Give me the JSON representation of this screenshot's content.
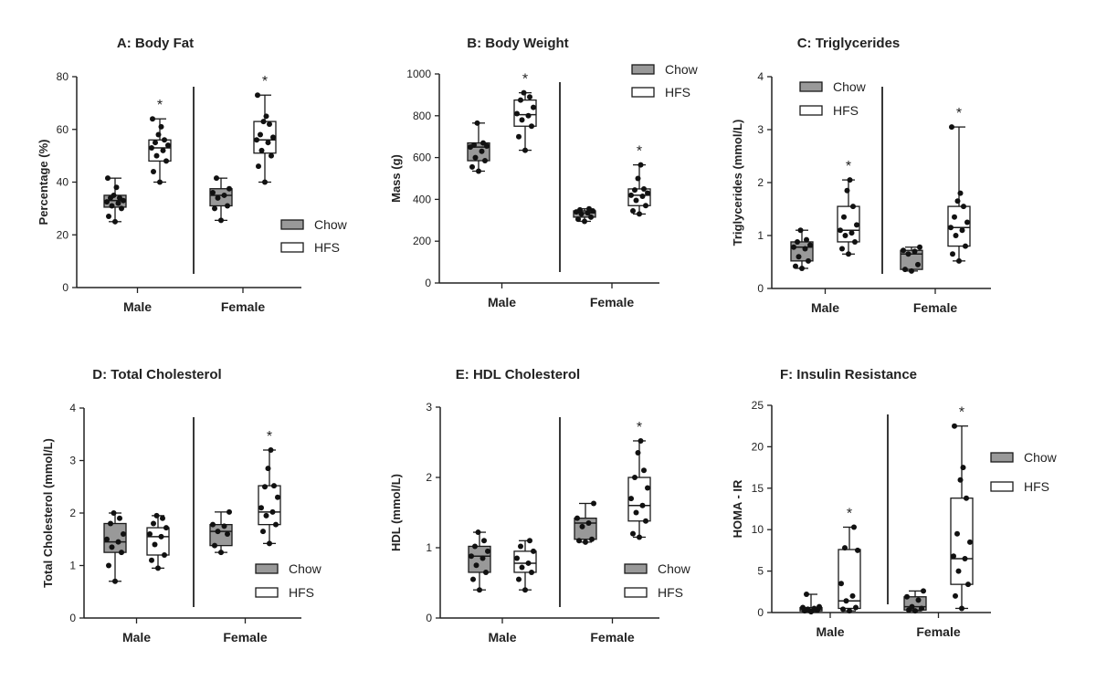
{
  "legend": {
    "chow_label": "Chow",
    "hfs_label": "HFS"
  },
  "significance_marker": "*",
  "colors": {
    "chow_fill": "#999999",
    "hfs_fill": "#ffffff",
    "stroke": "#1a1a1a"
  },
  "chart_data": [
    {
      "type": "box",
      "title": "A: Body Fat",
      "ylabel": "Percentage (%)",
      "ylim": [
        0,
        80
      ],
      "yticks": [
        0,
        20,
        40,
        60,
        80
      ],
      "categories": [
        "Male",
        "Female"
      ],
      "legend_position": "lower-right",
      "series": [
        {
          "name": "Chow",
          "boxes": [
            {
              "category": "Male",
              "min": 25,
              "q1": 30.5,
              "median": 33,
              "q3": 35,
              "max": 41.5,
              "points": [
                25,
                27,
                30,
                31,
                32,
                32.5,
                33,
                34,
                34,
                35,
                38,
                41.5
              ],
              "significant": false
            },
            {
              "category": "Female",
              "min": 25.5,
              "q1": 31,
              "median": 35,
              "q3": 37.5,
              "max": 41.5,
              "points": [
                25.5,
                30,
                31,
                34,
                35,
                36,
                37.5,
                41.5
              ],
              "significant": false
            }
          ]
        },
        {
          "name": "HFS",
          "boxes": [
            {
              "category": "Male",
              "min": 40,
              "q1": 48,
              "median": 53,
              "q3": 56,
              "max": 64,
              "points": [
                40,
                44,
                48,
                50,
                52,
                53,
                54,
                55,
                56,
                58,
                61,
                64
              ],
              "significant": true
            },
            {
              "category": "Female",
              "min": 40,
              "q1": 51,
              "median": 56,
              "q3": 63,
              "max": 73,
              "points": [
                40,
                46,
                50,
                52,
                55,
                56,
                57,
                58,
                62,
                63,
                65,
                73
              ],
              "significant": true
            }
          ]
        }
      ]
    },
    {
      "type": "box",
      "title": "B: Body Weight",
      "ylabel": "Mass (g)",
      "ylim": [
        0,
        1000
      ],
      "yticks": [
        0,
        200,
        400,
        600,
        800,
        1000
      ],
      "categories": [
        "Male",
        "Female"
      ],
      "legend_position": "top-right",
      "series": [
        {
          "name": "Chow",
          "boxes": [
            {
              "category": "Male",
              "min": 535,
              "q1": 585,
              "median": 650,
              "q3": 670,
              "max": 765,
              "points": [
                535,
                555,
                585,
                600,
                630,
                650,
                655,
                660,
                670,
                765
              ],
              "significant": false
            },
            {
              "category": "Female",
              "min": 295,
              "q1": 315,
              "median": 335,
              "q3": 345,
              "max": 355,
              "points": [
                295,
                305,
                315,
                330,
                335,
                340,
                345,
                350,
                355
              ],
              "significant": false
            }
          ]
        },
        {
          "name": "HFS",
          "boxes": [
            {
              "category": "Male",
              "min": 635,
              "q1": 750,
              "median": 805,
              "q3": 875,
              "max": 910,
              "points": [
                635,
                700,
                750,
                780,
                800,
                810,
                840,
                875,
                890,
                910
              ],
              "significant": true
            },
            {
              "category": "Female",
              "min": 330,
              "q1": 370,
              "median": 420,
              "q3": 450,
              "max": 565,
              "points": [
                330,
                345,
                370,
                395,
                415,
                420,
                430,
                445,
                450,
                500,
                565
              ],
              "significant": true
            }
          ]
        }
      ]
    },
    {
      "type": "box",
      "title": "C: Triglycerides",
      "ylabel": "Triglycerides (mmol/L)",
      "ylim": [
        0,
        4
      ],
      "yticks": [
        0,
        1,
        2,
        3,
        4
      ],
      "categories": [
        "Male",
        "Female"
      ],
      "legend_position": "top-left",
      "series": [
        {
          "name": "Chow",
          "boxes": [
            {
              "category": "Male",
              "min": 0.38,
              "q1": 0.52,
              "median": 0.78,
              "q3": 0.88,
              "max": 1.1,
              "points": [
                0.38,
                0.42,
                0.52,
                0.6,
                0.75,
                0.78,
                0.82,
                0.88,
                0.92,
                1.1
              ],
              "significant": false
            },
            {
              "category": "Female",
              "min": 0.33,
              "q1": 0.36,
              "median": 0.65,
              "q3": 0.72,
              "max": 0.78,
              "points": [
                0.33,
                0.36,
                0.45,
                0.65,
                0.7,
                0.72,
                0.78
              ],
              "significant": false
            }
          ]
        },
        {
          "name": "HFS",
          "boxes": [
            {
              "category": "Male",
              "min": 0.65,
              "q1": 0.88,
              "median": 1.1,
              "q3": 1.55,
              "max": 2.05,
              "points": [
                0.65,
                0.75,
                0.88,
                1.0,
                1.05,
                1.1,
                1.2,
                1.35,
                1.55,
                1.85,
                2.05
              ],
              "significant": true
            },
            {
              "category": "Female",
              "min": 0.52,
              "q1": 0.8,
              "median": 1.15,
              "q3": 1.55,
              "max": 3.05,
              "points": [
                0.52,
                0.65,
                0.8,
                1.0,
                1.1,
                1.15,
                1.25,
                1.35,
                1.55,
                1.65,
                1.8,
                3.05
              ],
              "significant": true
            }
          ]
        }
      ]
    },
    {
      "type": "box",
      "title": "D: Total Cholesterol",
      "ylabel": "Total Cholesterol (mmol/L)",
      "ylim": [
        0,
        4
      ],
      "yticks": [
        0,
        1,
        2,
        3,
        4
      ],
      "categories": [
        "Male",
        "Female"
      ],
      "legend_position": "lower-right",
      "series": [
        {
          "name": "Chow",
          "boxes": [
            {
              "category": "Male",
              "min": 0.7,
              "q1": 1.25,
              "median": 1.45,
              "q3": 1.8,
              "max": 2.0,
              "points": [
                0.7,
                1.0,
                1.25,
                1.35,
                1.45,
                1.5,
                1.6,
                1.8,
                1.9,
                2.0
              ],
              "significant": false
            },
            {
              "category": "Female",
              "min": 1.25,
              "q1": 1.38,
              "median": 1.65,
              "q3": 1.78,
              "max": 2.02,
              "points": [
                1.25,
                1.38,
                1.6,
                1.65,
                1.75,
                1.78,
                2.02
              ],
              "significant": false
            }
          ]
        },
        {
          "name": "HFS",
          "boxes": [
            {
              "category": "Male",
              "min": 0.95,
              "q1": 1.2,
              "median": 1.55,
              "q3": 1.72,
              "max": 1.95,
              "points": [
                0.95,
                1.1,
                1.2,
                1.4,
                1.55,
                1.6,
                1.72,
                1.8,
                1.9,
                1.95
              ],
              "significant": false
            },
            {
              "category": "Female",
              "min": 1.42,
              "q1": 1.78,
              "median": 2.02,
              "q3": 2.52,
              "max": 3.2,
              "points": [
                1.42,
                1.65,
                1.78,
                1.95,
                2.02,
                2.1,
                2.3,
                2.5,
                2.52,
                2.85,
                3.2
              ],
              "significant": true
            }
          ]
        }
      ]
    },
    {
      "type": "box",
      "title": "E: HDL Cholesterol",
      "ylabel": "HDL (mmol/L)",
      "ylim": [
        0,
        3
      ],
      "yticks": [
        0,
        1,
        2,
        3
      ],
      "categories": [
        "Male",
        "Female"
      ],
      "legend_position": "lower-right",
      "series": [
        {
          "name": "Chow",
          "boxes": [
            {
              "category": "Male",
              "min": 0.4,
              "q1": 0.65,
              "median": 0.88,
              "q3": 1.02,
              "max": 1.22,
              "points": [
                0.4,
                0.55,
                0.65,
                0.75,
                0.85,
                0.88,
                0.95,
                1.02,
                1.1,
                1.22
              ],
              "significant": false
            },
            {
              "category": "Female",
              "min": 1.08,
              "q1": 1.12,
              "median": 1.35,
              "q3": 1.42,
              "max": 1.63,
              "points": [
                1.08,
                1.1,
                1.12,
                1.3,
                1.35,
                1.42,
                1.63
              ],
              "significant": false
            }
          ]
        },
        {
          "name": "HFS",
          "boxes": [
            {
              "category": "Male",
              "min": 0.4,
              "q1": 0.65,
              "median": 0.78,
              "q3": 0.95,
              "max": 1.1,
              "points": [
                0.4,
                0.55,
                0.65,
                0.72,
                0.78,
                0.85,
                0.95,
                1.02,
                1.1
              ],
              "significant": false
            },
            {
              "category": "Female",
              "min": 1.15,
              "q1": 1.38,
              "median": 1.6,
              "q3": 2.0,
              "max": 2.52,
              "points": [
                1.15,
                1.2,
                1.38,
                1.5,
                1.6,
                1.7,
                1.85,
                2.0,
                2.1,
                2.35,
                2.52
              ],
              "significant": true
            }
          ]
        }
      ]
    },
    {
      "type": "box",
      "title": "F: Insulin Resistance",
      "ylabel": "HOMA - IR",
      "ylim": [
        0,
        25
      ],
      "yticks": [
        0,
        5,
        10,
        15,
        20,
        25
      ],
      "categories": [
        "Male",
        "Female"
      ],
      "legend_position": "top-right",
      "series": [
        {
          "name": "Chow",
          "boxes": [
            {
              "category": "Male",
              "min": 0.1,
              "q1": 0.2,
              "median": 0.4,
              "q3": 0.6,
              "max": 2.2,
              "points": [
                0.1,
                0.2,
                0.3,
                0.4,
                0.5,
                0.6,
                0.7,
                2.2
              ],
              "significant": false
            },
            {
              "category": "Female",
              "min": 0.2,
              "q1": 0.3,
              "median": 0.7,
              "q3": 1.9,
              "max": 2.6,
              "points": [
                0.2,
                0.3,
                0.5,
                0.7,
                1.5,
                1.9,
                2.6
              ],
              "significant": false
            }
          ]
        },
        {
          "name": "HFS",
          "boxes": [
            {
              "category": "Male",
              "min": 0.2,
              "q1": 0.5,
              "median": 1.4,
              "q3": 7.6,
              "max": 10.3,
              "points": [
                0.2,
                0.4,
                0.6,
                1.4,
                2.0,
                3.5,
                7.5,
                7.8,
                10.3
              ],
              "significant": true
            },
            {
              "category": "Female",
              "min": 0.5,
              "q1": 3.4,
              "median": 6.5,
              "q3": 13.8,
              "max": 22.5,
              "points": [
                0.5,
                2.0,
                3.4,
                5.0,
                6.5,
                6.8,
                8.5,
                9.5,
                13.8,
                16.0,
                17.5,
                22.5
              ],
              "significant": true
            }
          ]
        }
      ]
    }
  ]
}
